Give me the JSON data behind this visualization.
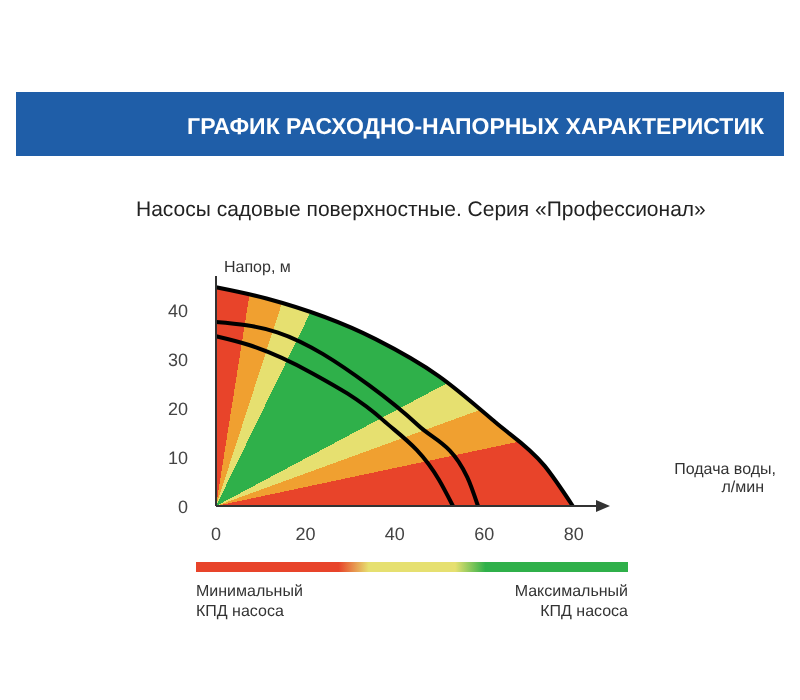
{
  "chart_data": {
    "type": "line",
    "title": "ГРАФИК РАСХОДНО-НАПОРНЫХ ХАРАКТЕРИСТИК",
    "subtitle": "Насосы садовые поверхностные. Серия «Профессионал»",
    "xlabel": "Подача воды, л/мин",
    "ylabel": "Напор, м",
    "series": [
      {
        "color": "#000000",
        "x": [
          0,
          11.3,
          35.7,
          49.9,
          62.5,
          73.5,
          79.8
        ],
        "values": [
          44.7,
          42.4,
          34.1,
          26.5,
          17.1,
          8.2,
          0
        ]
      },
      {
        "color": "#000000",
        "x": [
          0,
          13.7,
          34.2,
          45.2,
          56.2,
          58.6
        ],
        "values": [
          37.6,
          35.5,
          24.7,
          16.5,
          5.9,
          0
        ]
      },
      {
        "color": "#000000",
        "x": [
          0,
          7.4,
          21.6,
          37.3,
          49.9,
          53
        ],
        "values": [
          34.7,
          32.9,
          27.1,
          17.6,
          5.3,
          0
        ]
      }
    ],
    "xlim": [
      0,
      85
    ],
    "ylim": [
      0,
      47
    ],
    "xticks": [
      0,
      20,
      40,
      60,
      80
    ],
    "yticks": [
      0,
      10,
      20,
      30,
      40
    ],
    "grid": false,
    "marker": "none",
    "line_style": "solid",
    "annotations": [
      "Минимальный КПД насоса",
      "Максимальный КПД насоса"
    ]
  }
}
